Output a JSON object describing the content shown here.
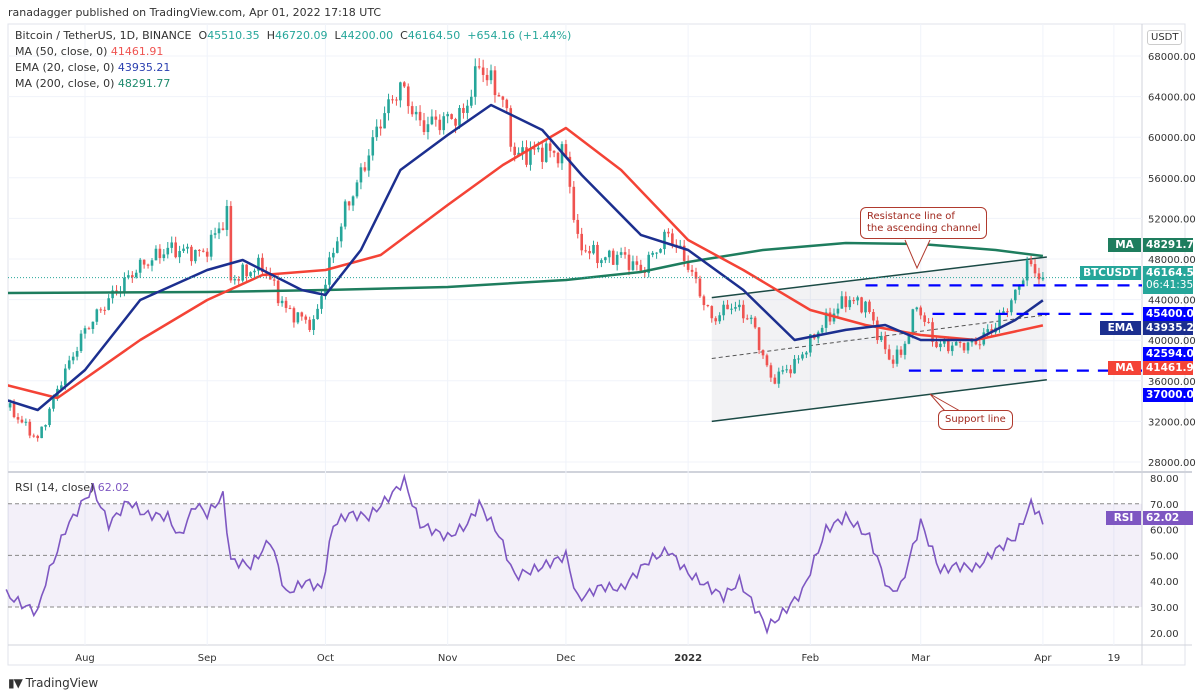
{
  "publisher_line": "ranadagger published on TradingView.com, Apr 01, 2022 17:18 UTC",
  "legend": {
    "symbol": "Bitcoin / TetherUS, 1D, BINANCE",
    "open_prefix": "O",
    "open": "45510.35",
    "high_prefix": "H",
    "high": "46720.09",
    "low_prefix": "L",
    "low": "44200.00",
    "close_prefix": "C",
    "close": "46164.50",
    "change": "+654.16 (+1.44%)",
    "ma50_label": "MA (50, close, 0)",
    "ma50_value": "41461.91",
    "ema20_label": "EMA (20, close, 0)",
    "ema20_value": "43935.21",
    "ma200_label": "MA (200, close, 0)",
    "ma200_value": "48291.77",
    "rsi_label": "RSI (14, close)",
    "rsi_value": "62.02"
  },
  "currency": "USDT",
  "badges": {
    "ma200_tag": "MA",
    "ma200": "48291.77",
    "symbol_tag": "BTCUSDT",
    "price": "46164.50",
    "countdown": "06:41:35",
    "level1": "45400.00",
    "ema_tag": "EMA",
    "ema": "43935.21",
    "level2": "42594.00",
    "ma50_tag": "MA",
    "ma50": "41461.91",
    "level3": "37000.00",
    "rsi_tag": "RSI",
    "rsi": "62.02"
  },
  "annotations": {
    "resistance": "Resistance line of\nthe ascending channel",
    "support": "Support line"
  },
  "footer_logo": "TradingView",
  "colors": {
    "up": "#26a69a",
    "down": "#ef5350",
    "ma50": "#f44336",
    "ema20": "#1c2f8f",
    "ma200": "#1e7d5e",
    "rsi": "#7e57c2",
    "level": "#0000ff"
  },
  "chart_data": {
    "type": "candlestick",
    "title": "Bitcoin / TetherUS, 1D, BINANCE",
    "y_ticks": [
      "28000.00",
      "32000.00",
      "36000.00",
      "40000.00",
      "44000.00",
      "48000.00",
      "52000.00",
      "56000.00",
      "60000.00",
      "64000.00",
      "68000.00"
    ],
    "ylim": [
      28000,
      68000
    ],
    "x_ticks": [
      [
        "2021-08-01",
        "Aug"
      ],
      [
        "2021-09-01",
        "Sep"
      ],
      [
        "2021-10-01",
        "Oct"
      ],
      [
        "2021-11-01",
        "Nov"
      ],
      [
        "2021-12-01",
        "Dec"
      ],
      [
        "2022-01-01",
        "2022"
      ],
      [
        "2022-02-01",
        "Feb"
      ],
      [
        "2022-03-01",
        "Mar"
      ],
      [
        "2022-04-01",
        "Apr"
      ],
      [
        "2022-04-19",
        "19"
      ]
    ],
    "close": [
      [
        "2021-07-12",
        33600
      ],
      [
        "2021-07-20",
        30200
      ],
      [
        "2021-07-26",
        36100
      ],
      [
        "2021-08-01",
        41000
      ],
      [
        "2021-08-07",
        44000
      ],
      [
        "2021-08-14",
        47000
      ],
      [
        "2021-08-22",
        49000
      ],
      [
        "2021-08-31",
        48500
      ],
      [
        "2021-09-06",
        52300
      ],
      [
        "2021-09-07",
        46000
      ],
      [
        "2021-09-15",
        47400
      ],
      [
        "2021-09-21",
        43000
      ],
      [
        "2021-09-28",
        41500
      ],
      [
        "2021-10-01",
        46000
      ],
      [
        "2021-10-06",
        52800
      ],
      [
        "2021-10-10",
        56300
      ],
      [
        "2021-10-15",
        61700
      ],
      [
        "2021-10-20",
        65100
      ],
      [
        "2021-10-25",
        61200
      ],
      [
        "2021-10-31",
        61700
      ],
      [
        "2021-11-05",
        62200
      ],
      [
        "2021-11-09",
        67100
      ],
      [
        "2021-11-15",
        63700
      ],
      [
        "2021-11-18",
        58200
      ],
      [
        "2021-11-25",
        58700
      ],
      [
        "2021-12-01",
        58200
      ],
      [
        "2021-12-04",
        49500
      ],
      [
        "2021-12-10",
        48000
      ],
      [
        "2021-12-15",
        48400
      ],
      [
        "2021-12-20",
        46800
      ],
      [
        "2021-12-27",
        50500
      ],
      [
        "2022-01-01",
        47400
      ],
      [
        "2022-01-07",
        42000
      ],
      [
        "2022-01-12",
        43500
      ],
      [
        "2022-01-17",
        42000
      ],
      [
        "2022-01-22",
        36100
      ],
      [
        "2022-01-28",
        37600
      ],
      [
        "2022-02-04",
        41500
      ],
      [
        "2022-02-10",
        44000
      ],
      [
        "2022-02-15",
        43500
      ],
      [
        "2022-02-21",
        38100
      ],
      [
        "2022-02-24",
        38600
      ],
      [
        "2022-02-28",
        43500
      ],
      [
        "2022-03-05",
        39500
      ],
      [
        "2022-03-10",
        39500
      ],
      [
        "2022-03-15",
        39700
      ],
      [
        "2022-03-20",
        41500
      ],
      [
        "2022-03-25",
        44500
      ],
      [
        "2022-03-28",
        47500
      ],
      [
        "2022-04-01",
        46164.5
      ]
    ],
    "ema20": [
      [
        "2021-07-12",
        34110
      ],
      [
        "2021-07-20",
        33120
      ],
      [
        "2021-08-01",
        37060
      ],
      [
        "2021-08-15",
        43960
      ],
      [
        "2021-09-01",
        46920
      ],
      [
        "2021-09-10",
        47900
      ],
      [
        "2021-09-25",
        44950
      ],
      [
        "2021-10-01",
        44450
      ],
      [
        "2021-10-10",
        48890
      ],
      [
        "2021-10-20",
        56770
      ],
      [
        "2021-11-01",
        60220
      ],
      [
        "2021-11-12",
        63170
      ],
      [
        "2021-11-25",
        60710
      ],
      [
        "2021-12-05",
        56280
      ],
      [
        "2021-12-20",
        50370
      ],
      [
        "2022-01-01",
        48890
      ],
      [
        "2022-01-15",
        44950
      ],
      [
        "2022-01-28",
        40020
      ],
      [
        "2022-02-10",
        41010
      ],
      [
        "2022-02-20",
        41500
      ],
      [
        "2022-03-01",
        40020
      ],
      [
        "2022-03-15",
        40020
      ],
      [
        "2022-03-25",
        41990
      ],
      [
        "2022-04-01",
        43935.21
      ]
    ],
    "ma50": [
      [
        "2021-07-12",
        35590
      ],
      [
        "2021-07-25",
        34310
      ],
      [
        "2021-08-15",
        40020
      ],
      [
        "2021-09-01",
        43960
      ],
      [
        "2021-09-15",
        46420
      ],
      [
        "2021-10-01",
        46920
      ],
      [
        "2021-10-15",
        48390
      ],
      [
        "2021-11-01",
        53320
      ],
      [
        "2021-11-15",
        57260
      ],
      [
        "2021-12-01",
        60910
      ],
      [
        "2021-12-15",
        56770
      ],
      [
        "2022-01-01",
        49870
      ],
      [
        "2022-01-15",
        46920
      ],
      [
        "2022-02-01",
        42980
      ],
      [
        "2022-02-15",
        41500
      ],
      [
        "2022-03-01",
        40510
      ],
      [
        "2022-03-15",
        40020
      ],
      [
        "2022-04-01",
        41461.91
      ]
    ],
    "ma200": [
      [
        "2021-07-12",
        44650
      ],
      [
        "2021-09-01",
        44750
      ],
      [
        "2021-10-01",
        44950
      ],
      [
        "2021-11-01",
        45240
      ],
      [
        "2021-12-01",
        45930
      ],
      [
        "2021-12-20",
        46720
      ],
      [
        "2022-01-01",
        47700
      ],
      [
        "2022-01-20",
        48890
      ],
      [
        "2022-02-10",
        49580
      ],
      [
        "2022-03-01",
        49480
      ],
      [
        "2022-03-20",
        48890
      ],
      [
        "2022-04-01",
        48291.77
      ]
    ],
    "rsi": {
      "ylim": [
        20,
        80
      ],
      "y_ticks": [
        "20.00",
        "30.00",
        "40.00",
        "50.00",
        "60.00",
        "70.00",
        "80.00"
      ],
      "bands": [
        30,
        50,
        70
      ],
      "values": [
        [
          "2021-07-12",
          35
        ],
        [
          "2021-07-16",
          31
        ],
        [
          "2021-07-20",
          28
        ],
        [
          "2021-07-22",
          40
        ],
        [
          "2021-07-27",
          60
        ],
        [
          "2021-08-01",
          72
        ],
        [
          "2021-08-03",
          76
        ],
        [
          "2021-08-07",
          62
        ],
        [
          "2021-08-12",
          71
        ],
        [
          "2021-08-16",
          66
        ],
        [
          "2021-08-22",
          65
        ],
        [
          "2021-08-25",
          57
        ],
        [
          "2021-08-29",
          70
        ],
        [
          "2021-09-01",
          66
        ],
        [
          "2021-09-05",
          73
        ],
        [
          "2021-09-07",
          48
        ],
        [
          "2021-09-12",
          46
        ],
        [
          "2021-09-17",
          56
        ],
        [
          "2021-09-21",
          35
        ],
        [
          "2021-09-26",
          40
        ],
        [
          "2021-09-30",
          37
        ],
        [
          "2021-10-03",
          62
        ],
        [
          "2021-10-07",
          66
        ],
        [
          "2021-10-12",
          65
        ],
        [
          "2021-10-18",
          74
        ],
        [
          "2021-10-21",
          79
        ],
        [
          "2021-10-25",
          62
        ],
        [
          "2021-11-01",
          57
        ],
        [
          "2021-11-06",
          62
        ],
        [
          "2021-11-09",
          70
        ],
        [
          "2021-11-14",
          58
        ],
        [
          "2021-11-18",
          42
        ],
        [
          "2021-11-24",
          45
        ],
        [
          "2021-12-01",
          50
        ],
        [
          "2021-12-04",
          33
        ],
        [
          "2021-12-10",
          38
        ],
        [
          "2021-12-15",
          37
        ],
        [
          "2021-12-22",
          48
        ],
        [
          "2021-12-27",
          52
        ],
        [
          "2022-01-01",
          43
        ],
        [
          "2022-01-10",
          34
        ],
        [
          "2022-01-14",
          40
        ],
        [
          "2022-01-21",
          22
        ],
        [
          "2022-01-24",
          26
        ],
        [
          "2022-01-30",
          36
        ],
        [
          "2022-02-05",
          60
        ],
        [
          "2022-02-10",
          65
        ],
        [
          "2022-02-16",
          57
        ],
        [
          "2022-02-21",
          36
        ],
        [
          "2022-02-24",
          38
        ],
        [
          "2022-03-01",
          63
        ],
        [
          "2022-03-06",
          44
        ],
        [
          "2022-03-10",
          46
        ],
        [
          "2022-03-15",
          45
        ],
        [
          "2022-03-20",
          52
        ],
        [
          "2022-03-25",
          57
        ],
        [
          "2022-03-29",
          70
        ],
        [
          "2022-03-31",
          66
        ],
        [
          "2022-04-01",
          62.02
        ]
      ]
    },
    "channel": {
      "upper": [
        [
          "2022-01-07",
          44200
        ],
        [
          "2022-04-02",
          48200
        ]
      ],
      "lower": [
        [
          "2022-01-07",
          32000
        ],
        [
          "2022-04-02",
          36100
        ]
      ],
      "mid": [
        [
          "2022-01-07",
          38200
        ],
        [
          "2022-04-02",
          42500
        ]
      ]
    },
    "levels": [
      [
        "2022-02-15",
        45400
      ],
      [
        "2022-03-04",
        42594
      ],
      [
        "2022-02-26",
        37000
      ]
    ]
  }
}
